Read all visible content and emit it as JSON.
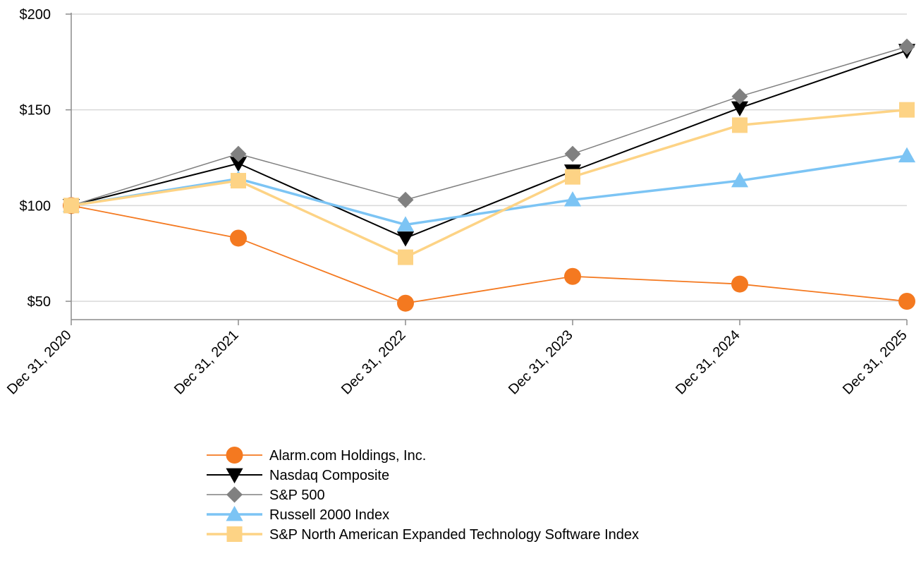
{
  "chart_data": {
    "type": "line",
    "title": "",
    "xlabel": "",
    "ylabel": "",
    "categories": [
      "Dec 31, 2020",
      "Dec 31, 2021",
      "Dec 31, 2022",
      "Dec 31, 2023",
      "Dec 31, 2024",
      "Dec 31, 2025"
    ],
    "y_ticks": [
      50,
      100,
      150,
      200
    ],
    "y_tick_labels": [
      "$50",
      "$100",
      "$150",
      "$200"
    ],
    "ylim": [
      41,
      200
    ],
    "grid": true,
    "legend_position": "bottom-center",
    "series": [
      {
        "name": "Alarm.com Holdings, Inc.",
        "color": "#f47920",
        "marker": "circle",
        "values": [
          100,
          83,
          49,
          63,
          59,
          50
        ]
      },
      {
        "name": "Nasdaq Composite",
        "color": "#000000",
        "marker": "triangle-down",
        "values": [
          100,
          122,
          83,
          118,
          151,
          181
        ]
      },
      {
        "name": "S&P 500",
        "color": "#808080",
        "marker": "diamond",
        "values": [
          100,
          127,
          103,
          127,
          157,
          183
        ]
      },
      {
        "name": "Russell 2000 Index",
        "color": "#7cc4f4",
        "marker": "triangle-up",
        "values": [
          100,
          114,
          90,
          103,
          113,
          126
        ]
      },
      {
        "name": "S&P North American Expanded Technology Software Index",
        "color": "#fdd385",
        "marker": "square",
        "values": [
          100,
          113,
          73,
          115,
          142,
          150
        ]
      }
    ]
  }
}
